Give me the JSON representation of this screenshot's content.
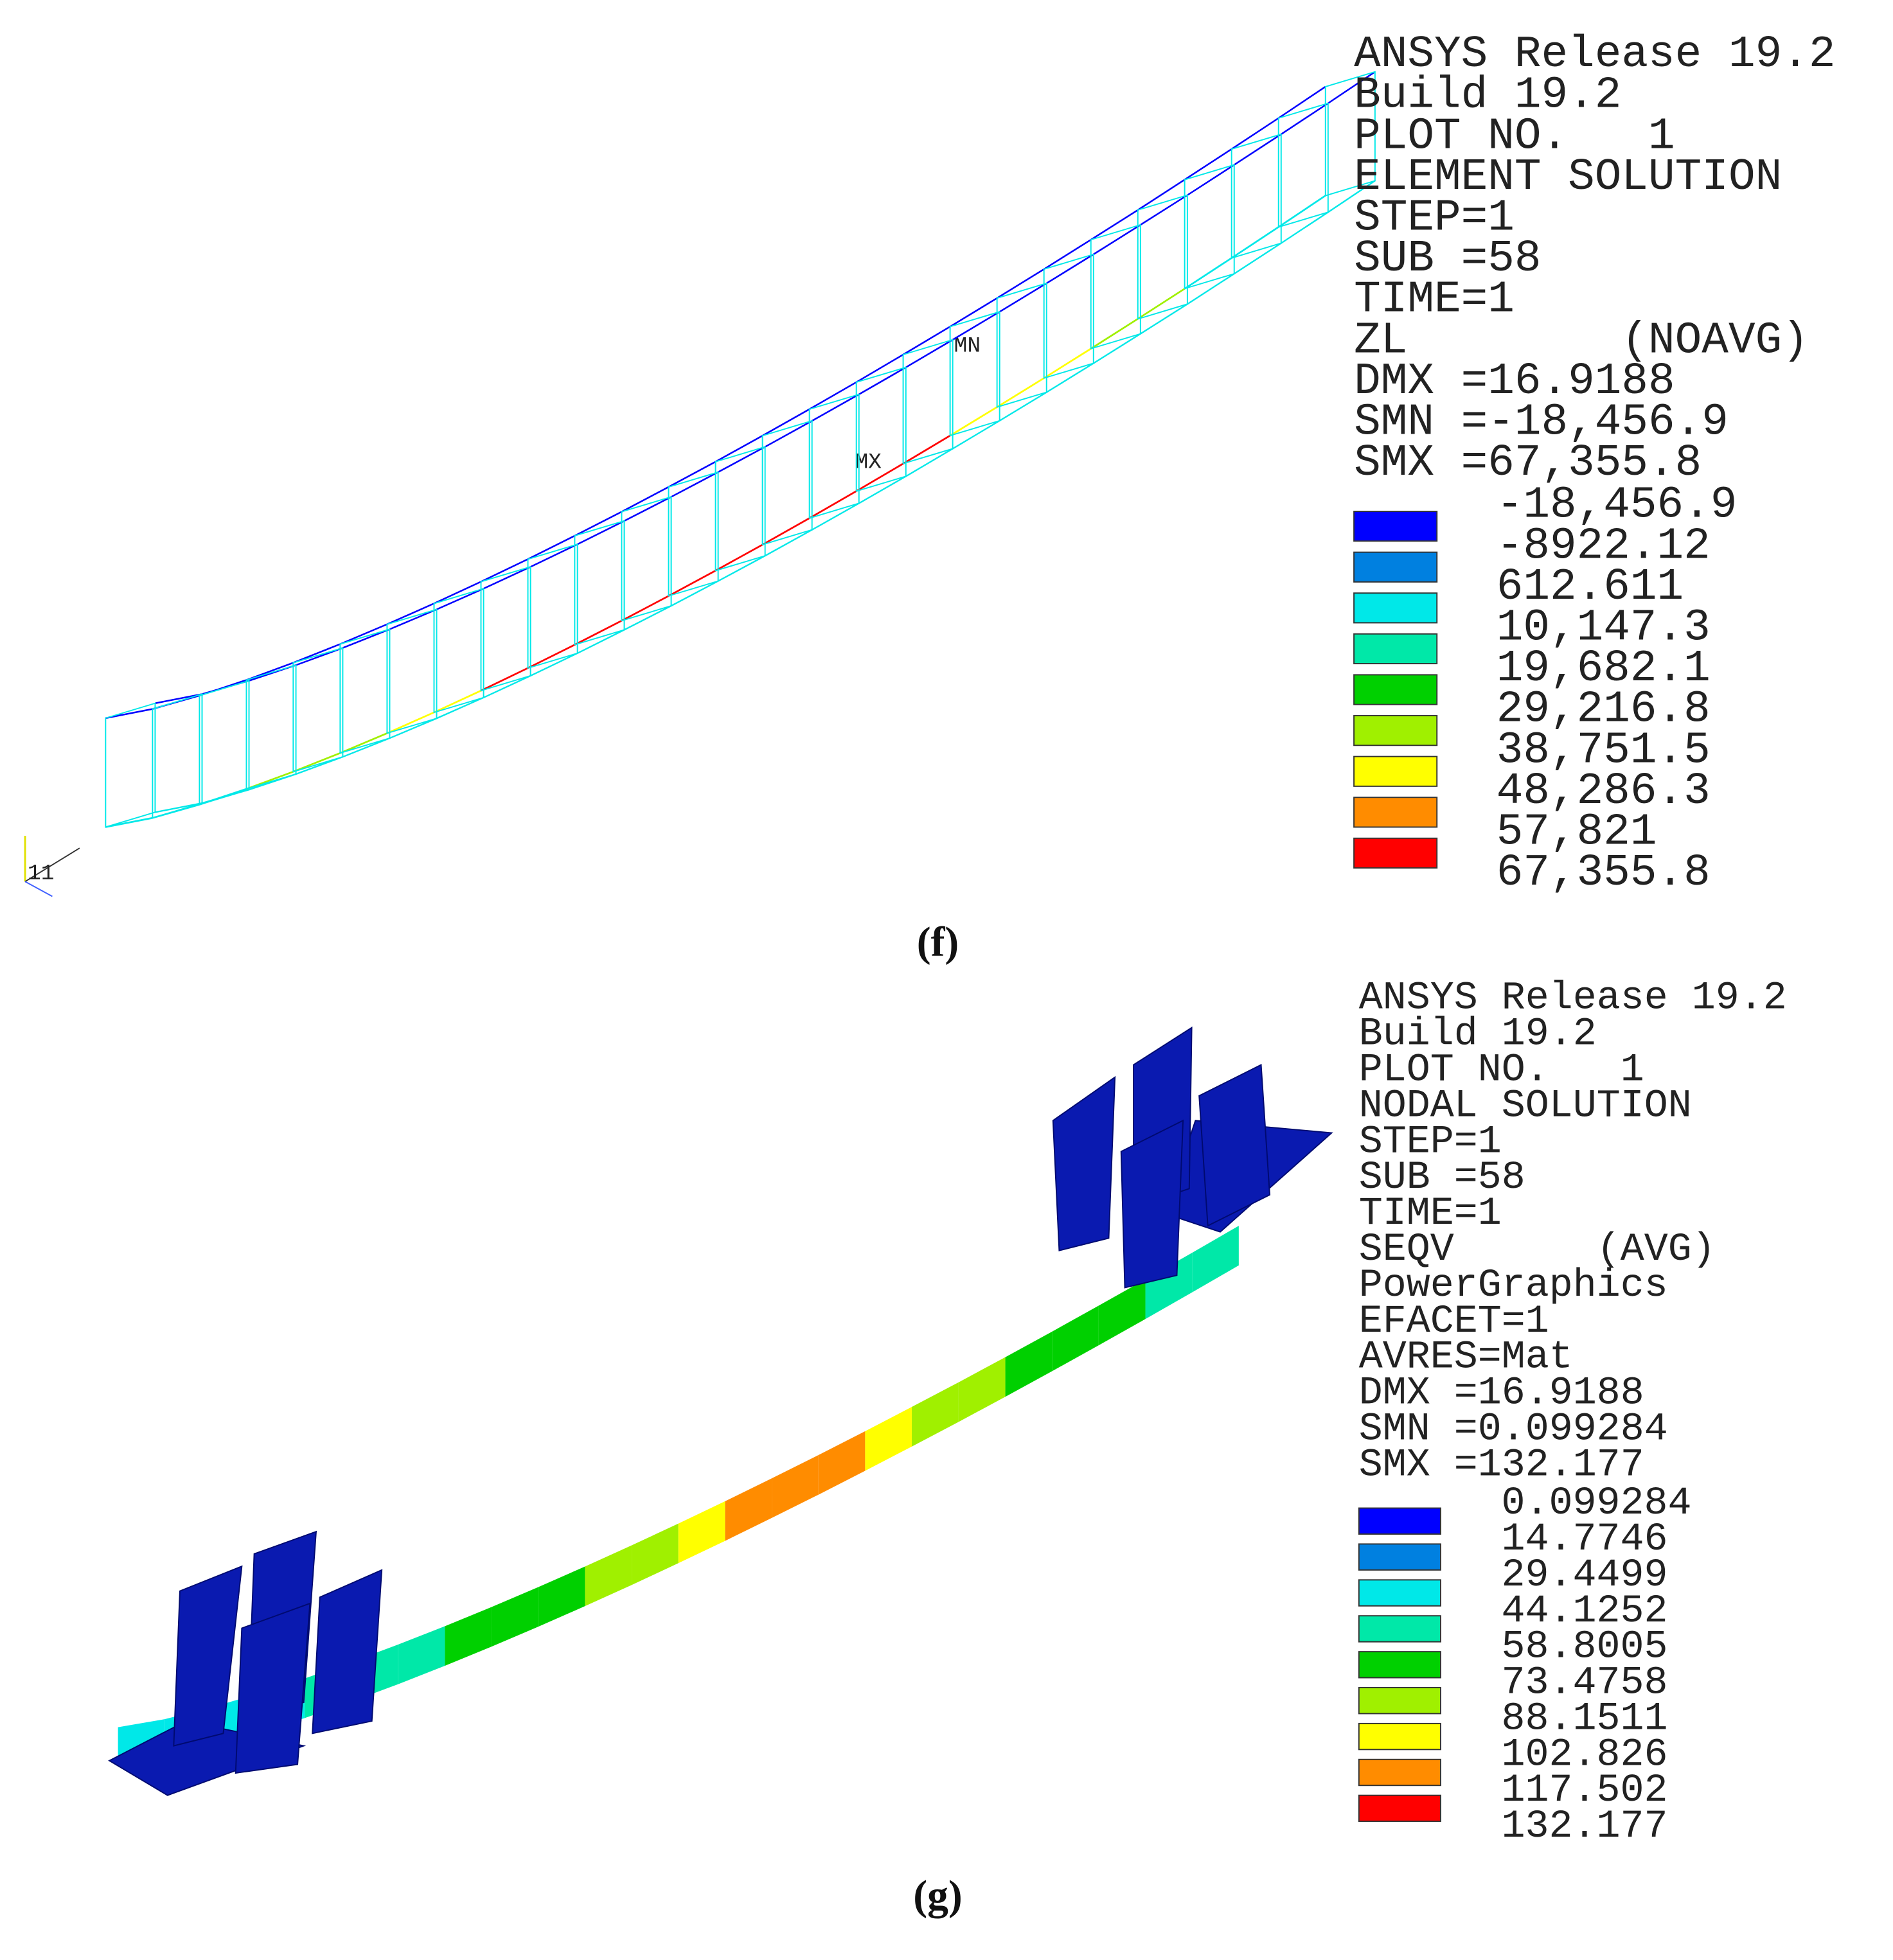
{
  "panels": [
    {
      "caption": "(f)",
      "info": [
        "ANSYS Release 19.2",
        "Build 19.2",
        "PLOT NO.   1",
        "ELEMENT SOLUTION",
        "STEP=1",
        "SUB =58",
        "TIME=1",
        "ZL        (NOAVG)",
        "DMX =16.9188",
        "SMN =-18,456.9",
        "SMX =67,355.8"
      ],
      "legend": {
        "colors": [
          "#0000ff",
          "#0080e0",
          "#00e8e8",
          "#00e8a8",
          "#00d000",
          "#a0f000",
          "#ffff00",
          "#ff8c00",
          "#ff0000"
        ],
        "labels": [
          "-18,456.9",
          "-8922.12",
          "612.611",
          "10,147.3",
          "19,682.1",
          "29,216.8",
          "38,751.5",
          "48,286.3",
          "57,821",
          "67,355.8"
        ]
      },
      "markers": {
        "min": "MN",
        "max": "MX",
        "triad": "11"
      }
    },
    {
      "caption": "(g)",
      "info": [
        "ANSYS Release 19.2",
        "Build 19.2",
        "PLOT NO.   1",
        "NODAL SOLUTION",
        "STEP=1",
        "SUB =58",
        "TIME=1",
        "SEQV      (AVG)",
        "PowerGraphics",
        "EFACET=1",
        "AVRES=Mat",
        "DMX =16.9188",
        "SMN =0.099284",
        "SMX =132.177"
      ],
      "legend": {
        "colors": [
          "#0000ff",
          "#0080e0",
          "#00e8e8",
          "#00e8a8",
          "#00d000",
          "#a0f000",
          "#ffff00",
          "#ff8c00",
          "#ff0000"
        ],
        "labels": [
          "0.099284",
          "14.7746",
          "29.4499",
          "44.1252",
          "58.8005",
          "73.4758",
          "88.1511",
          "102.826",
          "117.502",
          "132.177"
        ]
      }
    }
  ]
}
